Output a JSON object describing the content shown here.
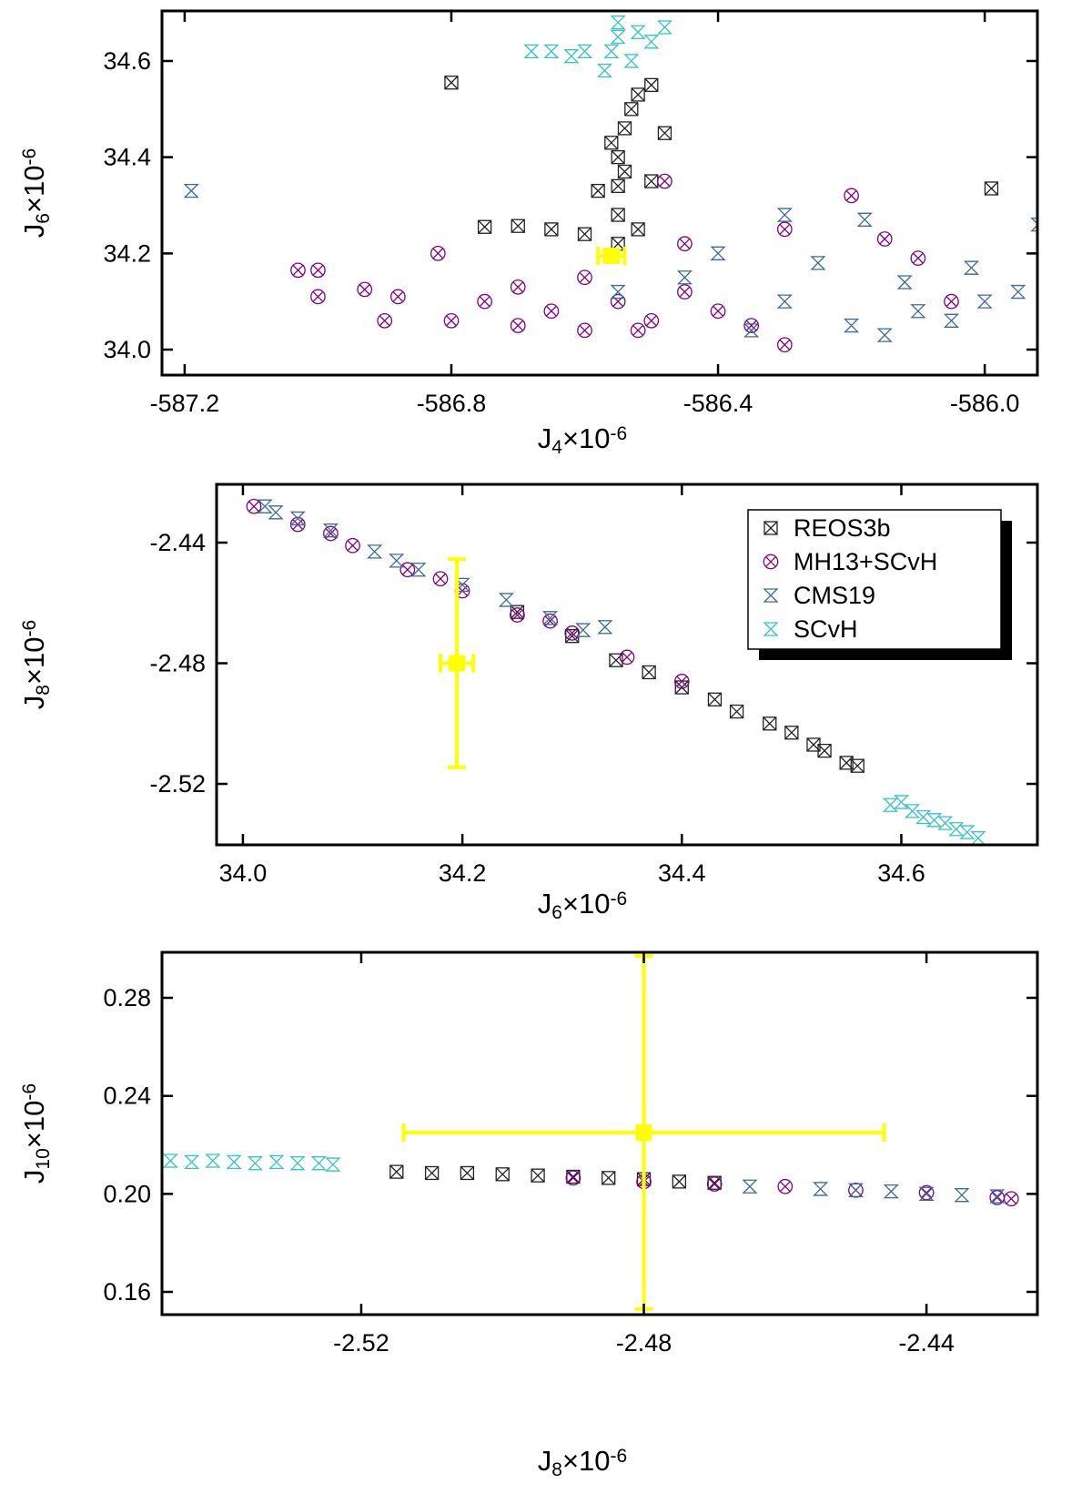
{
  "chart_data": [
    {
      "type": "scatter",
      "xlabel": {
        "base": "J",
        "sub": "4",
        "mid": "×10",
        "sup": "-6"
      },
      "ylabel": {
        "base": "J",
        "sub": "6",
        "mid": "×10",
        "sup": "-6"
      },
      "xlim": [
        -587.234,
        -585.921
      ],
      "ylim": [
        33.947,
        34.704
      ],
      "xticks": [
        -587.2,
        -586.8,
        -586.4,
        {
          "value": -586.0,
          "label": "-586.0"
        }
      ],
      "yticks": [
        {
          "value": 34.0,
          "label": "34.0"
        },
        34.2,
        34.4,
        34.6
      ],
      "series": [
        {
          "color": "#222222",
          "marker": "square-x",
          "x": [
            -586.8,
            -585.99,
            -586.75,
            -586.7,
            -586.65,
            -586.6,
            -586.58,
            -586.55,
            -586.55,
            -586.55,
            -586.55,
            -586.54,
            -586.53,
            -586.52,
            -586.5,
            -586.48,
            -586.5,
            -586.52,
            -586.56,
            -586.54
          ],
          "y": [
            34.555,
            34.335,
            34.255,
            34.257,
            34.25,
            34.24,
            34.33,
            34.22,
            34.28,
            34.34,
            34.4,
            34.46,
            34.5,
            34.53,
            34.55,
            34.45,
            34.35,
            34.25,
            34.43,
            34.37
          ]
        },
        {
          "color": "#800080",
          "marker": "circle-x",
          "x": [
            -587.03,
            -587.0,
            -587.0,
            -586.93,
            -586.9,
            -586.88,
            -586.82,
            -586.8,
            -586.75,
            -586.7,
            -586.65,
            -586.6,
            -586.55,
            -586.5,
            -586.45,
            -586.4,
            -586.35,
            -586.3,
            -586.6,
            -586.7,
            -586.48,
            -586.45,
            -586.3,
            -586.2,
            -586.15,
            -586.1,
            -586.05,
            -586.52
          ],
          "y": [
            34.165,
            34.165,
            34.11,
            34.125,
            34.06,
            34.11,
            34.2,
            34.06,
            34.1,
            34.05,
            34.08,
            34.04,
            34.1,
            34.06,
            34.12,
            34.08,
            34.05,
            34.01,
            34.15,
            34.13,
            34.35,
            34.22,
            34.25,
            34.32,
            34.23,
            34.19,
            34.1,
            34.04
          ]
        },
        {
          "color": "#3a6b96",
          "marker": "bowtie",
          "x": [
            -587.19,
            -586.55,
            -586.45,
            -586.4,
            -586.3,
            -586.25,
            -586.2,
            -586.15,
            -586.1,
            -586.05,
            -586.0,
            -585.95,
            -586.02,
            -585.92,
            -586.3,
            -586.18,
            -586.12,
            -586.35
          ],
          "y": [
            34.33,
            34.12,
            34.15,
            34.2,
            34.1,
            34.18,
            34.05,
            34.03,
            34.08,
            34.06,
            34.1,
            34.12,
            34.17,
            34.26,
            34.28,
            34.27,
            34.14,
            34.04
          ]
        },
        {
          "color": "#33c4c8",
          "marker": "bowtie",
          "x": [
            -586.68,
            -586.65,
            -586.62,
            -586.6,
            -586.57,
            -586.56,
            -586.55,
            -586.55,
            -586.53,
            -586.52,
            -586.5,
            -586.48
          ],
          "y": [
            34.62,
            34.62,
            34.61,
            34.62,
            34.58,
            34.62,
            34.65,
            34.68,
            34.6,
            34.66,
            34.64,
            34.67
          ]
        }
      ],
      "observation": {
        "color": "#ffff00",
        "x": -586.56,
        "y": 34.195,
        "xerr": 0.02,
        "yerr": 0.01
      }
    },
    {
      "type": "scatter",
      "xlabel": {
        "base": "J",
        "sub": "6",
        "mid": "×10",
        "sup": "-6"
      },
      "ylabel": {
        "base": "J",
        "sub": "8",
        "mid": "×10",
        "sup": "-6"
      },
      "xlim": [
        33.976,
        34.724
      ],
      "ylim": [
        -2.5402,
        -2.4207
      ],
      "xticks": [
        {
          "value": 34.0,
          "label": "34.0"
        },
        34.2,
        34.4,
        34.6
      ],
      "yticks": [
        -2.52,
        -2.48,
        -2.44
      ],
      "legend": "upper right",
      "series": [
        {
          "name": "REOS3b",
          "color": "#222222",
          "marker": "square-x",
          "x": [
            34.25,
            34.3,
            34.34,
            34.37,
            34.4,
            34.43,
            34.45,
            34.48,
            34.5,
            34.52,
            34.53,
            34.55,
            34.56
          ],
          "y": [
            -2.463,
            -2.471,
            -2.479,
            -2.483,
            -2.488,
            -2.492,
            -2.496,
            -2.5,
            -2.503,
            -2.507,
            -2.509,
            -2.513,
            -2.514
          ]
        },
        {
          "name": "MH13+SCvH",
          "color": "#800080",
          "marker": "circle-x",
          "x": [
            34.01,
            34.05,
            34.1,
            34.15,
            34.2,
            34.25,
            34.3,
            34.35,
            34.4,
            34.08,
            34.18,
            34.28
          ],
          "y": [
            -2.428,
            -2.434,
            -2.441,
            -2.449,
            -2.456,
            -2.464,
            -2.47,
            -2.478,
            -2.486,
            -2.437,
            -2.452,
            -2.466
          ]
        },
        {
          "name": "CMS19",
          "color": "#3a6b96",
          "marker": "bowtie",
          "x": [
            34.02,
            34.05,
            34.08,
            34.12,
            34.16,
            34.2,
            34.24,
            34.28,
            34.31,
            34.33,
            34.03,
            34.14
          ],
          "y": [
            -2.428,
            -2.432,
            -2.436,
            -2.443,
            -2.449,
            -2.454,
            -2.459,
            -2.465,
            -2.469,
            -2.468,
            -2.43,
            -2.446
          ]
        },
        {
          "name": "SCvH",
          "color": "#33c4c8",
          "marker": "bowtie",
          "x": [
            34.59,
            34.61,
            34.63,
            34.65,
            34.67,
            34.6,
            34.62,
            34.64,
            34.66
          ],
          "y": [
            -2.527,
            -2.529,
            -2.532,
            -2.535,
            -2.538,
            -2.526,
            -2.531,
            -2.533,
            -2.536
          ]
        }
      ],
      "observation": {
        "color": "#ffff00",
        "x": 34.195,
        "y": -2.48,
        "xerr": 0.015,
        "yerr": 0.0345
      }
    },
    {
      "type": "scatter",
      "xlabel": {
        "base": "J",
        "sub": "8",
        "mid": "×10",
        "sup": "-6"
      },
      "ylabel": {
        "base": "J",
        "sub": "10",
        "mid": "×10",
        "sup": "-6"
      },
      "xlim": [
        -2.5482,
        -2.4243
      ],
      "ylim": [
        0.1507,
        0.2986
      ],
      "xticks": [
        -2.52,
        -2.48,
        -2.44
      ],
      "yticks": [
        0.16,
        {
          "value": 0.2,
          "label": "0.20"
        },
        0.24,
        0.28
      ],
      "series": [
        {
          "color": "#222222",
          "marker": "square-x",
          "x": [
            -2.515,
            -2.51,
            -2.505,
            -2.5,
            -2.495,
            -2.49,
            -2.485,
            -2.48,
            -2.475,
            -2.47
          ],
          "y": [
            0.209,
            0.2085,
            0.2085,
            0.208,
            0.2075,
            0.207,
            0.2065,
            0.206,
            0.205,
            0.2045
          ]
        },
        {
          "color": "#800080",
          "marker": "circle-x",
          "x": [
            -2.49,
            -2.48,
            -2.47,
            -2.46,
            -2.45,
            -2.44,
            -2.43,
            -2.428
          ],
          "y": [
            0.2065,
            0.205,
            0.204,
            0.203,
            0.2015,
            0.2005,
            0.1985,
            0.198
          ]
        },
        {
          "color": "#3a6b96",
          "marker": "bowtie",
          "x": [
            -2.465,
            -2.455,
            -2.445,
            -2.44,
            -2.435,
            -2.43,
            -2.45
          ],
          "y": [
            0.203,
            0.202,
            0.201,
            0.2,
            0.1995,
            0.199,
            0.2015
          ]
        },
        {
          "color": "#33c4c8",
          "marker": "bowtie",
          "x": [
            -2.547,
            -2.544,
            -2.541,
            -2.538,
            -2.535,
            -2.532,
            -2.529,
            -2.526,
            -2.524
          ],
          "y": [
            0.2135,
            0.213,
            0.2135,
            0.213,
            0.2125,
            0.213,
            0.2125,
            0.2125,
            0.212
          ]
        }
      ],
      "observation": {
        "color": "#ffff00",
        "x": -2.48,
        "y": 0.225,
        "xerr": 0.034,
        "yerr": 0.072
      }
    }
  ]
}
